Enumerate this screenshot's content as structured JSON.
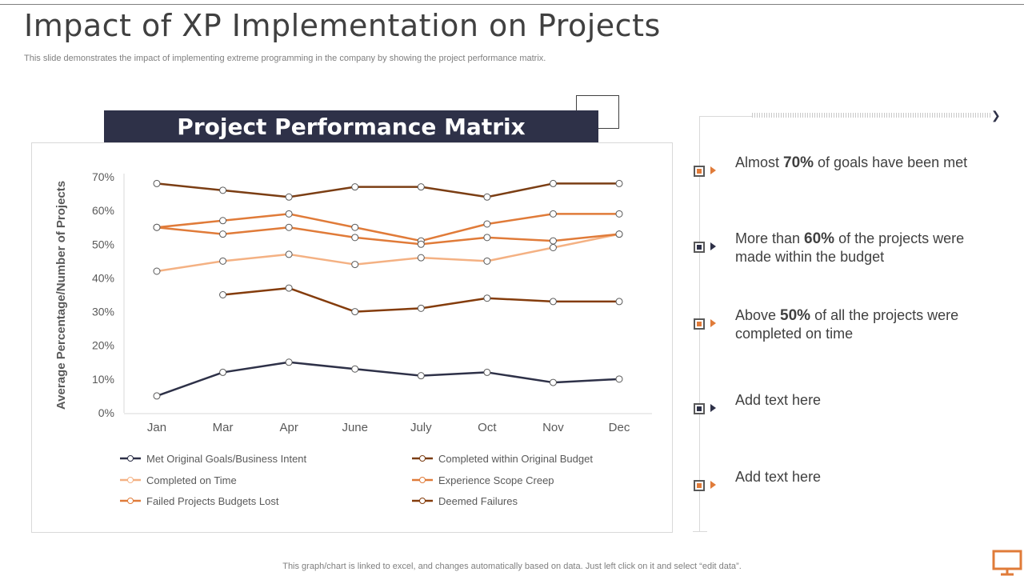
{
  "page": {
    "title": "Impact of XP Implementation on Projects",
    "subtitle": "This slide demonstrates the impact of implementing extreme programming in the company by showing the project performance matrix.",
    "banner": "Project Performance Matrix",
    "footer": "This graph/chart is linked to excel,  and changes automatically based on data. Just left click on it and select “edit data”."
  },
  "points": [
    {
      "pre": "Almost ",
      "bold": "70%",
      "post": " of goals have been met",
      "color": "#e07b39"
    },
    {
      "pre": "More than  ",
      "bold": "60%",
      "post": " of the projects were made within  the budget",
      "color": "#2e3148"
    },
    {
      "pre": "Above ",
      "bold": "50%",
      "post": " of all the projects were completed on time",
      "color": "#e07b39"
    },
    {
      "pre": "Add text here",
      "bold": "",
      "post": "",
      "color": "#2e3148"
    },
    {
      "pre": "Add text here",
      "bold": "",
      "post": "",
      "color": "#e07b39"
    }
  ],
  "icons": {
    "bullet": "square-bullet-icon",
    "arrow": "arrow-right-icon",
    "presentation": "monitor-icon"
  },
  "chart_data": {
    "type": "line",
    "title": "",
    "xlabel": "",
    "ylabel": "Average Percentage/Number of Projects",
    "categories": [
      "Jan",
      "Mar",
      "Apr",
      "June",
      "July",
      "Oct",
      "Nov",
      "Dec"
    ],
    "ylim": [
      0,
      70
    ],
    "yticks": [
      "0%",
      "10%",
      "20%",
      "30%",
      "40%",
      "50%",
      "60%",
      "70%"
    ],
    "grid": false,
    "legend_position": "bottom",
    "series": [
      {
        "name": "Met Original  Goals/Business Intent",
        "color": "#2e3148",
        "values": [
          5,
          12,
          15,
          13,
          11,
          12,
          9,
          10
        ]
      },
      {
        "name": "Completed within Original Budget",
        "color": "#7b3e14",
        "values": [
          68,
          66,
          64,
          67,
          67,
          64,
          68,
          68
        ]
      },
      {
        "name": "Completed on Time",
        "color": "#f4b183",
        "values": [
          42,
          45,
          47,
          44,
          46,
          45,
          49,
          53
        ]
      },
      {
        "name": "Experience Scope Creep",
        "color": "#e07b39",
        "values": [
          55,
          57,
          59,
          55,
          51,
          56,
          59,
          59
        ]
      },
      {
        "name": "Failed Projects Budgets Lost",
        "color": "#e07b39",
        "values": [
          55,
          53,
          55,
          52,
          50,
          52,
          51,
          53
        ]
      },
      {
        "name": "Deemed Failures",
        "color": "#843c0c",
        "values": [
          null,
          35,
          37,
          30,
          31,
          34,
          33,
          33
        ]
      }
    ]
  }
}
